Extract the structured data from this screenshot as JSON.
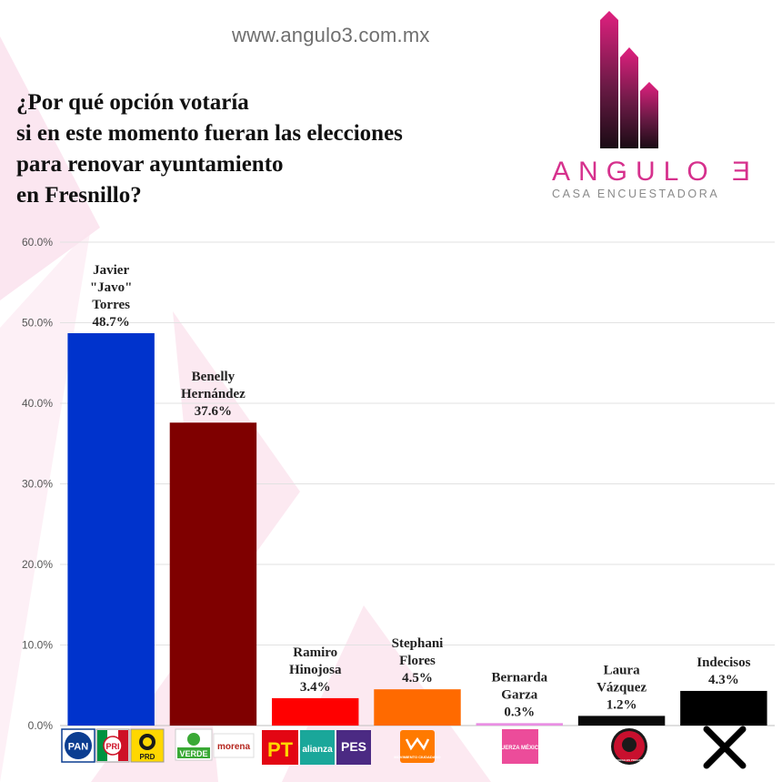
{
  "header": {
    "website": "www.angulo3.com.mx",
    "question_lines": [
      "¿Por qué opción votaría",
      "si en este momento fueran las elecciones",
      "para renovar ayuntamiento",
      "en Fresnillo?"
    ]
  },
  "logo": {
    "name": "ANGULO Ǝ",
    "subtitle": "CASA ENCUESTADORA",
    "accent_color": "#d6318d"
  },
  "party_logos": [
    [
      "PAN",
      "PRI",
      "PRD"
    ],
    [
      "VERDE",
      "morena"
    ],
    [
      "PT",
      "alianza",
      "PES"
    ],
    [
      "MOVIMIENTO CIUDADANO"
    ],
    [
      "FUERZA MÉXICO"
    ],
    [
      "REDES SOCIALES PROGRESISTAS"
    ],
    [
      "X"
    ]
  ],
  "chart_data": {
    "type": "bar",
    "categories": [
      [
        "Javier",
        "\"Javo\"",
        "Torres"
      ],
      [
        "Benelly",
        "Hernández"
      ],
      [
        "Ramiro",
        "Hinojosa"
      ],
      [
        "Stephani",
        "Flores"
      ],
      [
        "Bernarda",
        "Garza"
      ],
      [
        "Laura",
        "Vázquez"
      ],
      [
        "Indecisos"
      ]
    ],
    "values": [
      48.7,
      37.6,
      3.4,
      4.5,
      0.3,
      1.2,
      4.3
    ],
    "value_labels": [
      "48.7%",
      "37.6%",
      "3.4%",
      "4.5%",
      "0.3%",
      "1.2%",
      "4.3%"
    ],
    "colors": [
      "#0033cc",
      "#7f0000",
      "#ff0000",
      "#ff6a00",
      "#e98ee3",
      "#0a0a0a",
      "#000000"
    ],
    "ylim": [
      0,
      60
    ],
    "yticks": [
      0,
      10,
      20,
      30,
      40,
      50,
      60
    ],
    "ytick_labels": [
      "0.0%",
      "10.0%",
      "20.0%",
      "30.0%",
      "40.0%",
      "50.0%",
      "60.0%"
    ],
    "grid": true,
    "legend": "none"
  }
}
